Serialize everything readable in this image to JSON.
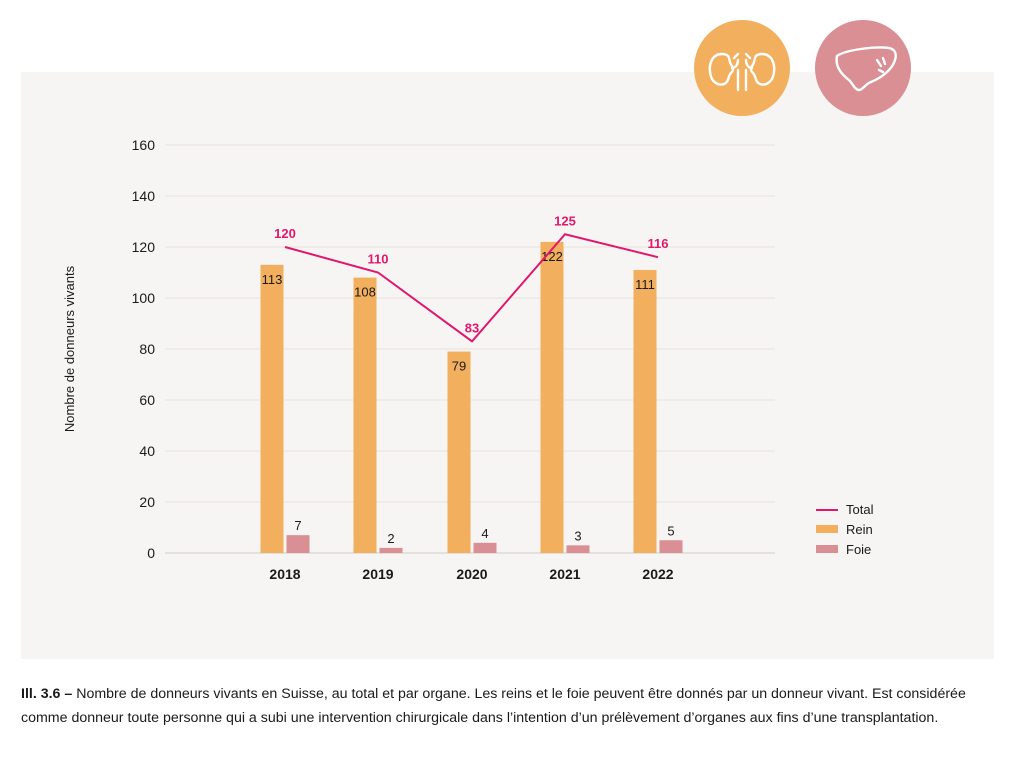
{
  "icons": [
    {
      "name": "kidney-icon",
      "color": "#f2b05e"
    },
    {
      "name": "liver-icon",
      "color": "#d98f93"
    }
  ],
  "colors": {
    "total": "#e0176d",
    "rein": "#f2b05e",
    "foie": "#d98f93",
    "panel": "#f7f5f3"
  },
  "caption": {
    "label": "Ill. 3.6 –",
    "text": " Nombre de donneurs vivants en Suisse, au total et par organe. Les reins et le foie peuvent être donnés par un donneur vivant. Est considérée comme donneur toute personne qui a subi une intervention chirurgicale dans l’intention d’un prélèvement d’organes aux fins d’une transplantation."
  },
  "chart_data": {
    "type": "bar",
    "categories": [
      "2018",
      "2019",
      "2020",
      "2021",
      "2022"
    ],
    "ylabel": "Nombre de donneurs vivants",
    "xlabel": "",
    "title": "",
    "ylim": [
      0,
      160
    ],
    "yticks": [
      0,
      20,
      40,
      60,
      80,
      100,
      120,
      140,
      160
    ],
    "grid": true,
    "legend_position": "right",
    "series": [
      {
        "name": "Total",
        "kind": "line",
        "values": [
          120,
          110,
          83,
          125,
          116
        ],
        "labels": [
          "120",
          "110",
          "83",
          "125",
          "116"
        ]
      },
      {
        "name": "Rein",
        "kind": "bar",
        "values": [
          113,
          108,
          79,
          122,
          111
        ],
        "labels": [
          "113",
          "108",
          "79",
          "122",
          "111"
        ]
      },
      {
        "name": "Foie",
        "kind": "bar",
        "values": [
          7,
          2,
          4,
          3,
          5
        ],
        "labels": [
          "7",
          "2",
          "4",
          "3",
          "5"
        ]
      }
    ]
  }
}
